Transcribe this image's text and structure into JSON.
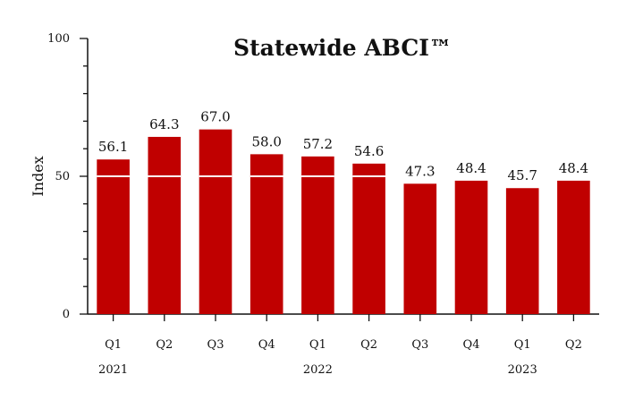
{
  "chart_data": {
    "type": "bar",
    "title": "Statewide ABCI™",
    "ylabel": "Index",
    "xlabel": "",
    "ylim": [
      0,
      100
    ],
    "yticks": [
      "0",
      "50",
      "100"
    ],
    "categories": [
      "Q1",
      "Q2",
      "Q3",
      "Q4",
      "Q1",
      "Q2",
      "Q3",
      "Q4",
      "Q1",
      "Q2"
    ],
    "years": [
      {
        "label": "2021",
        "center_index": 0
      },
      {
        "label": "2022",
        "center_index": 4
      },
      {
        "label": "2023",
        "center_index": 8
      }
    ],
    "values": [
      56.1,
      64.3,
      67.0,
      58.0,
      57.2,
      54.6,
      47.3,
      48.4,
      45.7,
      48.4
    ],
    "value_labels": [
      "56.1",
      "64.3",
      "67.0",
      "58.0",
      "57.2",
      "54.6",
      "47.3",
      "48.4",
      "45.7",
      "48.4"
    ],
    "reference_line": 50,
    "bar_color": "#c00000",
    "reference_line_color": "#ffffff",
    "grid": false,
    "legend": "none"
  }
}
